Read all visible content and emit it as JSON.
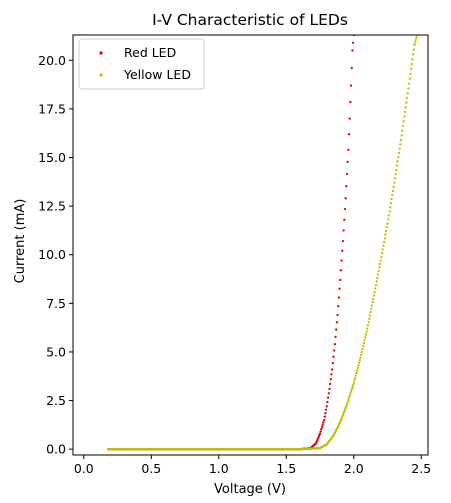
{
  "chart_data": {
    "type": "scatter",
    "title": "I-V Characteristic of LEDs",
    "xlabel": "Voltage (V)",
    "ylabel": "Current (mA)",
    "xlim": [
      -0.08,
      2.55
    ],
    "ylim": [
      -0.3,
      21.3
    ],
    "xticks": [
      "0.0",
      "0.5",
      "1.0",
      "1.5",
      "2.0",
      "2.5"
    ],
    "yticks": [
      "0.0",
      "2.5",
      "5.0",
      "7.5",
      "10.0",
      "12.5",
      "15.0",
      "17.5",
      "20.0"
    ],
    "grid": false,
    "legend": "upper left",
    "series": [
      {
        "name": "Red LED",
        "color": "#e00000",
        "marker": "point",
        "x": [
          0.18,
          1.0,
          1.6,
          1.68,
          1.72,
          1.75,
          1.78,
          1.8,
          1.82,
          1.84,
          1.86,
          1.88,
          1.9,
          1.92,
          1.94,
          1.96,
          1.97,
          1.98,
          1.99,
          2.0
        ],
        "values": [
          0.0,
          0.0,
          0.0,
          0.05,
          0.3,
          0.8,
          1.5,
          2.2,
          3.1,
          4.1,
          5.4,
          6.9,
          8.7,
          10.7,
          12.9,
          15.4,
          17.0,
          18.7,
          20.5,
          21.3
        ]
      },
      {
        "name": "Yellow LED",
        "color": "#bfbf00",
        "marker": "point",
        "x": [
          0.18,
          1.0,
          1.6,
          1.75,
          1.8,
          1.85,
          1.9,
          1.95,
          2.0,
          2.05,
          2.1,
          2.15,
          2.2,
          2.25,
          2.3,
          2.35,
          2.4,
          2.45,
          2.47
        ],
        "values": [
          0.0,
          0.0,
          0.0,
          0.05,
          0.25,
          0.7,
          1.4,
          2.3,
          3.4,
          4.7,
          6.2,
          7.9,
          9.7,
          11.6,
          13.7,
          15.9,
          18.3,
          20.8,
          21.3
        ]
      }
    ]
  }
}
